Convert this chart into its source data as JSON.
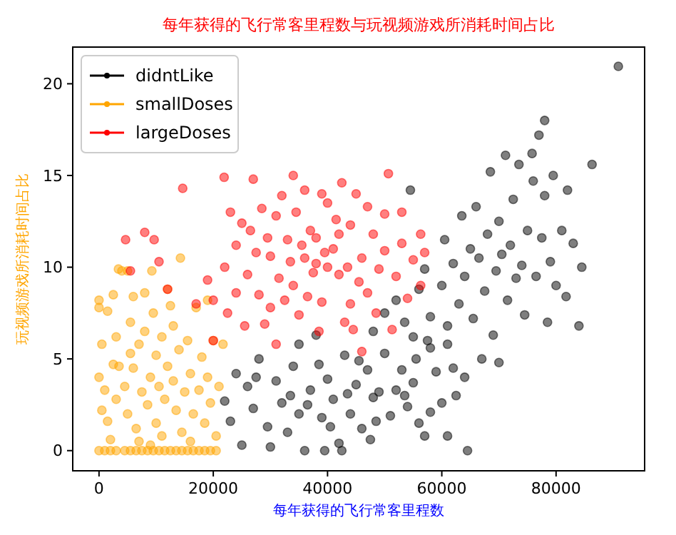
{
  "chart_data": {
    "type": "scatter",
    "title": "每年获得的飞行常客里程数与玩视频游戏所消耗时间占比",
    "xlabel": "每年获得的飞行常客里程数",
    "ylabel": "玩视频游戏所消耗时间占比",
    "xlim": [
      -4600,
      95500
    ],
    "xticks": [
      0,
      20000,
      40000,
      60000,
      80000
    ],
    "ylim": [
      -1.1,
      22
    ],
    "yticks": [
      0,
      5,
      10,
      15,
      20
    ],
    "grid": false,
    "legend": "top left",
    "marker": "circle",
    "series": [
      {
        "name": "didntLike",
        "color": "#000000",
        "x": [
          22000,
          23000,
          24000,
          25000,
          26000,
          27000,
          28000,
          29500,
          30000,
          31000,
          32000,
          33000,
          34000,
          35000,
          36000,
          36500,
          37000,
          38000,
          39000,
          39500,
          40000,
          41000,
          42000,
          42500,
          43000,
          44000,
          45000,
          46000,
          47000,
          47500,
          48000,
          49000,
          50000,
          51000,
          52000,
          53000,
          54000,
          55000,
          56000,
          57000,
          58000,
          58000,
          59000,
          60000,
          61000,
          62000,
          64500,
          61000,
          53500,
          45500,
          40500,
          33500,
          27500,
          43500,
          38500,
          48500,
          55500,
          35000,
          48000,
          50000,
          52000,
          53500,
          54500,
          55000,
          56000,
          57000,
          58000,
          60000,
          60500,
          61000,
          62000,
          63000,
          63500,
          64000,
          65000,
          65500,
          66000,
          66500,
          67000,
          67500,
          68000,
          68500,
          69000,
          69500,
          70000,
          70500,
          71150,
          71500,
          72000,
          72500,
          73000,
          73500,
          74000,
          74500,
          75000,
          75800,
          76000,
          76500,
          77000,
          77500,
          78000,
          78500,
          79000,
          79500,
          80000,
          81000,
          81750,
          82000,
          83000,
          84000,
          86300,
          84500,
          90900,
          64000,
          57500,
          62500,
          70000,
          78000
        ],
        "values": [
          2.7,
          1.6,
          4.2,
          0.3,
          3.5,
          2.3,
          5.0,
          1.3,
          0.2,
          3.8,
          2.6,
          1.0,
          4.6,
          5.8,
          0.0,
          2.5,
          3.3,
          6.3,
          1.8,
          0.0,
          3.9,
          2.8,
          0.4,
          0.0,
          5.2,
          2.0,
          3.6,
          1.2,
          4.4,
          0.6,
          2.9,
          3.2,
          5.3,
          1.9,
          3.3,
          4.4,
          2.4,
          3.7,
          1.5,
          0.8,
          2.1,
          5.6,
          4.3,
          2.6,
          0.8,
          4.5,
          0.0,
          5.8,
          3.0,
          4.9,
          1.3,
          3.0,
          4.0,
          3.1,
          4.7,
          1.6,
          5.0,
          2.0,
          6.5,
          7.5,
          8.2,
          7.0,
          14.2,
          6.2,
          8.8,
          9.9,
          7.3,
          9.0,
          11.5,
          6.8,
          10.2,
          8.0,
          12.8,
          9.5,
          11.0,
          7.2,
          13.3,
          10.5,
          5.0,
          8.7,
          11.8,
          15.2,
          6.3,
          9.8,
          12.5,
          10.7,
          16.1,
          8.2,
          11.2,
          13.7,
          9.4,
          15.6,
          10.1,
          7.4,
          12.0,
          16.2,
          14.7,
          9.5,
          17.2,
          11.6,
          13.9,
          7.0,
          10.3,
          15.0,
          9.0,
          12.0,
          8.4,
          14.2,
          11.3,
          6.8,
          15.6,
          10.0,
          20.95,
          4.0,
          6.0,
          3.0,
          4.8,
          18.0
        ]
      },
      {
        "name": "smallDoses",
        "color": "#ffa500",
        "x": [
          0,
          1000,
          2000,
          3000,
          4500,
          5500,
          6500,
          7500,
          8500,
          9500,
          10500,
          11500,
          12500,
          13500,
          14500,
          15500,
          16500,
          17500,
          18500,
          19500,
          20500,
          0,
          0,
          500,
          0,
          1000,
          500,
          1500,
          2000,
          1500,
          3400,
          4000,
          5000,
          5500,
          6000,
          3000,
          2500,
          3500,
          4500,
          3000,
          5000,
          6500,
          7000,
          6000,
          7000,
          8000,
          7500,
          8500,
          9000,
          9250,
          9500,
          10000,
          10500,
          10000,
          11000,
          11500,
          12000,
          11000,
          12500,
          12000,
          13000,
          13500,
          14000,
          14250,
          14500,
          15000,
          15500,
          16000,
          16500,
          17000,
          17500,
          18000,
          18500,
          19000,
          19500,
          20000,
          20500,
          21700,
          8000,
          13000,
          5500,
          9000,
          16000,
          2500,
          19000,
          21000
        ],
        "values": [
          0,
          0,
          0,
          0,
          0,
          0,
          0,
          0,
          0,
          0,
          0,
          0,
          0,
          0,
          0,
          0,
          0,
          0,
          0,
          0,
          0,
          8.2,
          7.8,
          5.8,
          4.0,
          3.3,
          2.2,
          1.6,
          0.6,
          7.6,
          9.9,
          9.8,
          9.8,
          7.0,
          8.4,
          6.2,
          4.7,
          4.6,
          3.5,
          2.8,
          2.0,
          1.2,
          0.5,
          4.5,
          5.8,
          6.5,
          3.2,
          2.5,
          4.0,
          9.8,
          7.5,
          5.2,
          3.5,
          1.5,
          0.8,
          2.8,
          4.6,
          6.2,
          7.9,
          8.8,
          3.8,
          2.2,
          5.5,
          10.5,
          1.0,
          3.2,
          6.0,
          4.2,
          2.0,
          7.8,
          3.3,
          5.1,
          1.5,
          4.0,
          2.6,
          6.0,
          0.8,
          5.8,
          8.6,
          6.8,
          5.3,
          0.3,
          0.5,
          8.5,
          8.2,
          3.5
        ]
      },
      {
        "name": "largeDoses",
        "color": "#ff0000",
        "x": [
          21900,
          14650,
          4650,
          8000,
          9650,
          10500,
          5500,
          12000,
          17000,
          20000,
          19000,
          22000,
          24000,
          25000,
          23000,
          27000,
          26000,
          28000,
          29000,
          30000,
          31000,
          32000,
          33000,
          34000,
          35000,
          36000,
          37000,
          38000,
          39000,
          40000,
          41000,
          42000,
          43000,
          44000,
          45000,
          46000,
          47000,
          48000,
          49000,
          50000,
          50650,
          51300,
          52000,
          53000,
          54000,
          55000,
          56300,
          56300,
          57000,
          29500,
          31500,
          33500,
          35500,
          37500,
          39500,
          41500,
          43500,
          45500,
          36000,
          38000,
          40000,
          42000,
          27500,
          32500,
          34500,
          44000,
          47000,
          30000,
          38500,
          46000,
          24000,
          26500,
          42500,
          36500,
          48500,
          53000,
          31000,
          34000,
          39000,
          25500,
          28500,
          44500,
          50000,
          22500,
          20000
        ],
        "values": [
          14.9,
          14.3,
          11.5,
          11.9,
          11.5,
          10.3,
          9.8,
          8.8,
          8.0,
          8.2,
          9.3,
          10.0,
          11.2,
          12.4,
          13.0,
          14.8,
          9.6,
          8.5,
          6.9,
          10.6,
          12.8,
          13.9,
          11.5,
          9.0,
          7.4,
          14.2,
          12.0,
          10.2,
          8.1,
          13.5,
          11.0,
          9.6,
          7.0,
          12.3,
          14.0,
          10.5,
          8.6,
          11.8,
          9.9,
          12.9,
          15.1,
          6.6,
          9.5,
          11.3,
          8.3,
          10.4,
          11.8,
          9.0,
          10.8,
          11.6,
          9.4,
          10.3,
          11.2,
          9.7,
          10.8,
          12.6,
          10.0,
          9.2,
          10.5,
          11.6,
          10.0,
          11.8,
          10.8,
          8.2,
          13.0,
          8.0,
          13.3,
          7.8,
          6.5,
          5.4,
          8.6,
          12.0,
          14.6,
          8.4,
          7.5,
          13.0,
          5.8,
          15.0,
          14.0,
          6.8,
          13.2,
          6.6,
          10.9,
          7.5,
          6.0
        ]
      }
    ]
  }
}
